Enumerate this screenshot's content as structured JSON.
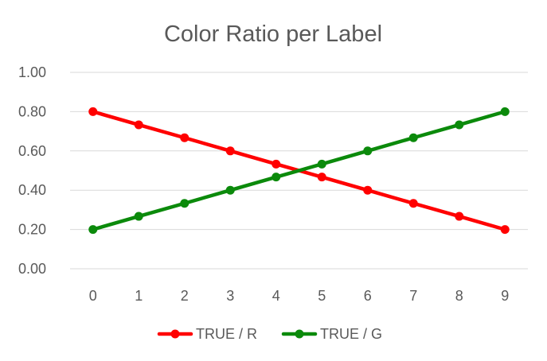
{
  "chart_data": {
    "type": "line",
    "title": "Color Ratio per Label",
    "xlabel": "",
    "ylabel": "",
    "categories": [
      "0",
      "1",
      "2",
      "3",
      "4",
      "5",
      "6",
      "7",
      "8",
      "9"
    ],
    "ylim": [
      0,
      1
    ],
    "yticks": [
      "0.00",
      "0.20",
      "0.40",
      "0.60",
      "0.80",
      "1.00"
    ],
    "grid": true,
    "legend": "bottom",
    "series": [
      {
        "name": "TRUE / R",
        "color": "#ff0000",
        "values": [
          0.8,
          0.733,
          0.667,
          0.6,
          0.533,
          0.467,
          0.4,
          0.333,
          0.267,
          0.2
        ]
      },
      {
        "name": "TRUE / G",
        "color": "#0b8a0b",
        "values": [
          0.2,
          0.267,
          0.333,
          0.4,
          0.467,
          0.533,
          0.6,
          0.667,
          0.733,
          0.8
        ]
      }
    ]
  }
}
